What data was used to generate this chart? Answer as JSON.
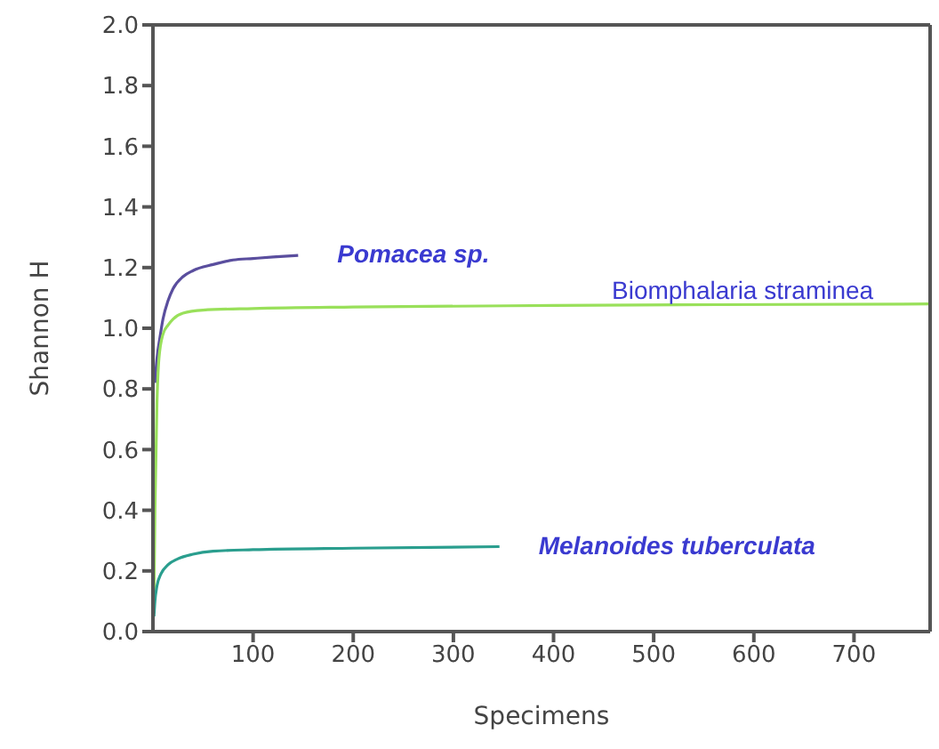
{
  "chart_data": {
    "type": "line",
    "xlabel": "Specimens",
    "ylabel": "Shannon H",
    "xlim": [
      0,
      776
    ],
    "xticks": [
      100,
      200,
      300,
      400,
      500,
      600,
      700
    ],
    "ylim": [
      0,
      2
    ],
    "yticks": [
      {
        "value": 0,
        "label": "0.0"
      },
      {
        "value": 0.2,
        "label": "0.2"
      },
      {
        "value": 0.4,
        "label": "0.4"
      },
      {
        "value": 0.6,
        "label": "0.6"
      },
      {
        "value": 0.8,
        "label": "0.8"
      },
      {
        "value": 1,
        "label": "1.0"
      },
      {
        "value": 1.2,
        "label": "1.2"
      },
      {
        "value": 1.4,
        "label": "1.4"
      },
      {
        "value": 1.6,
        "label": "1.6"
      },
      {
        "value": 1.8,
        "label": "1.8"
      },
      {
        "value": 2,
        "label": "2.0"
      }
    ],
    "marker": "none",
    "line_style": "solid",
    "series": [
      {
        "name": "Pomacea sp.",
        "color": "#5a4e9e",
        "x": [
          2,
          4,
          7,
          10,
          15,
          20,
          30,
          40,
          60,
          80,
          100,
          120,
          145
        ],
        "values": [
          0.82,
          0.9,
          0.97,
          1.03,
          1.09,
          1.13,
          1.17,
          1.19,
          1.21,
          1.225,
          1.23,
          1.235,
          1.24
        ]
      },
      {
        "name": "Biomphalaria straminea",
        "color": "#99e05a",
        "x": [
          1,
          2,
          4,
          6,
          10,
          15,
          20,
          30,
          50,
          100,
          200,
          400,
          776
        ],
        "values": [
          0.1,
          0.4,
          0.75,
          0.9,
          0.98,
          1.01,
          1.03,
          1.05,
          1.06,
          1.065,
          1.07,
          1.075,
          1.08
        ]
      },
      {
        "name": "Melanoides tuberculata",
        "color": "#2a9e8e",
        "x": [
          1,
          2,
          4,
          8,
          15,
          25,
          40,
          60,
          100,
          200,
          346
        ],
        "values": [
          0.05,
          0.1,
          0.15,
          0.19,
          0.22,
          0.24,
          0.255,
          0.265,
          0.27,
          0.275,
          0.28
        ]
      }
    ]
  }
}
